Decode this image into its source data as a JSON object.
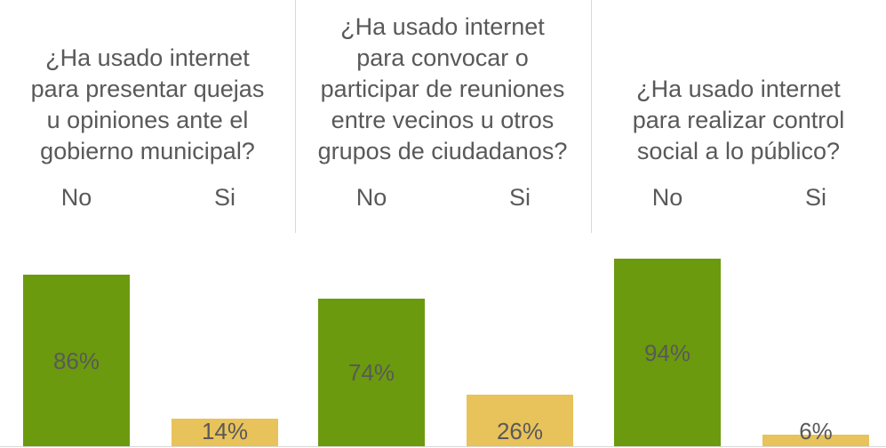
{
  "chart_data": {
    "type": "bar",
    "ylim": [
      0,
      100
    ],
    "colors": {
      "No": "#6b9a0e",
      "Si": "#e8c25a"
    },
    "groups": [
      {
        "question_lines": [
          "¿Ha usado internet",
          "para presentar quejas",
          "u opiniones ante el",
          "gobierno municipal?"
        ],
        "categories": [
          "No",
          "Si"
        ],
        "values": [
          86,
          14
        ],
        "labels": [
          "86%",
          "14%"
        ]
      },
      {
        "question_lines": [
          "¿Ha usado internet",
          "para convocar o",
          "participar de reuniones",
          "entre vecinos u otros",
          "grupos de ciudadanos?"
        ],
        "categories": [
          "No",
          "Si"
        ],
        "values": [
          74,
          26
        ],
        "labels": [
          "74%",
          "26%"
        ]
      },
      {
        "question_lines": [
          "¿Ha usado internet",
          "para realizar control",
          "social a lo público?"
        ],
        "categories": [
          "No",
          "Si"
        ],
        "values": [
          94,
          6
        ],
        "labels": [
          "94%",
          "6%"
        ]
      }
    ]
  }
}
